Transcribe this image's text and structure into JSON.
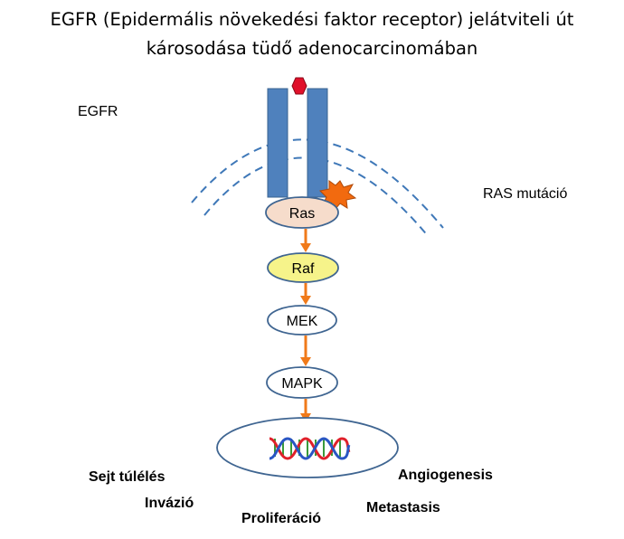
{
  "title": {
    "line1": "EGFR (Epidermális növekedési faktor receptor)  jelátviteli út",
    "line2": "károsodása tüdő adenocarcinomában"
  },
  "labels": {
    "egfr": "EGFR",
    "ras_mutation": "RAS mutáció"
  },
  "pathway": {
    "nodes": [
      {
        "label": "Ras",
        "fill": "#f6dccb"
      },
      {
        "label": "Raf",
        "fill": "#f6f38a"
      },
      {
        "label": "MEK",
        "fill": "#ffffff"
      },
      {
        "label": "MAPK",
        "fill": "#ffffff"
      }
    ],
    "arrow_color": "#f07a1a"
  },
  "outcomes": {
    "survival": "Sejt túlélés",
    "invasion": "Invázió",
    "proliferation": "Proliferáció",
    "angiogenesis": "Angiogenesis",
    "metastasis": "Metastasis"
  },
  "colors": {
    "receptor": "#4f81bd",
    "receptor_outline": "#3a6390",
    "ligand": "#e0102a",
    "membrane": "#3f78b8",
    "node_outline": "#3f6591",
    "mutation_burst": "#f26a0f",
    "dna_strand_red": "#e0202a",
    "dna_strand_blue": "#2a56c4",
    "dna_rung_green": "#3a9a3a"
  }
}
